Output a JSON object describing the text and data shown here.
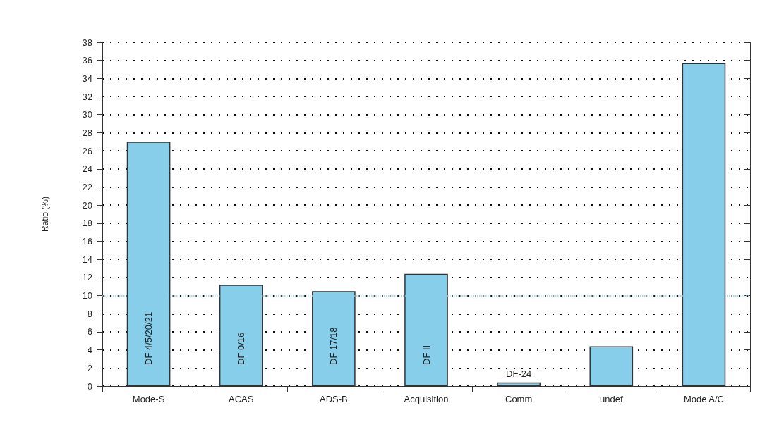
{
  "chart_data": {
    "type": "bar",
    "ylabel": "Ratio (%)",
    "categories": [
      "Mode-S",
      "ACAS",
      "ADS-B",
      "Acquisition",
      "Comm",
      "undef",
      "Mode A/C"
    ],
    "values": [
      27.0,
      11.2,
      10.5,
      12.4,
      0.4,
      4.4,
      35.7
    ],
    "color": "#87ceeb",
    "ylim": [
      0,
      38
    ],
    "yticks": [
      0,
      2,
      4,
      6,
      8,
      10,
      12,
      14,
      16,
      18,
      20,
      22,
      24,
      26,
      28,
      30,
      32,
      34,
      36,
      38
    ],
    "grid": "y",
    "ref_lines": [
      {
        "axis": "y",
        "value": 10,
        "color": "#87ceeb",
        "line_style": "dotted"
      }
    ],
    "value_labels": [
      "DF 4/5/20/21",
      "DF 0/16",
      "DF 17/18",
      "DF II",
      "DF-24",
      null,
      null
    ]
  }
}
